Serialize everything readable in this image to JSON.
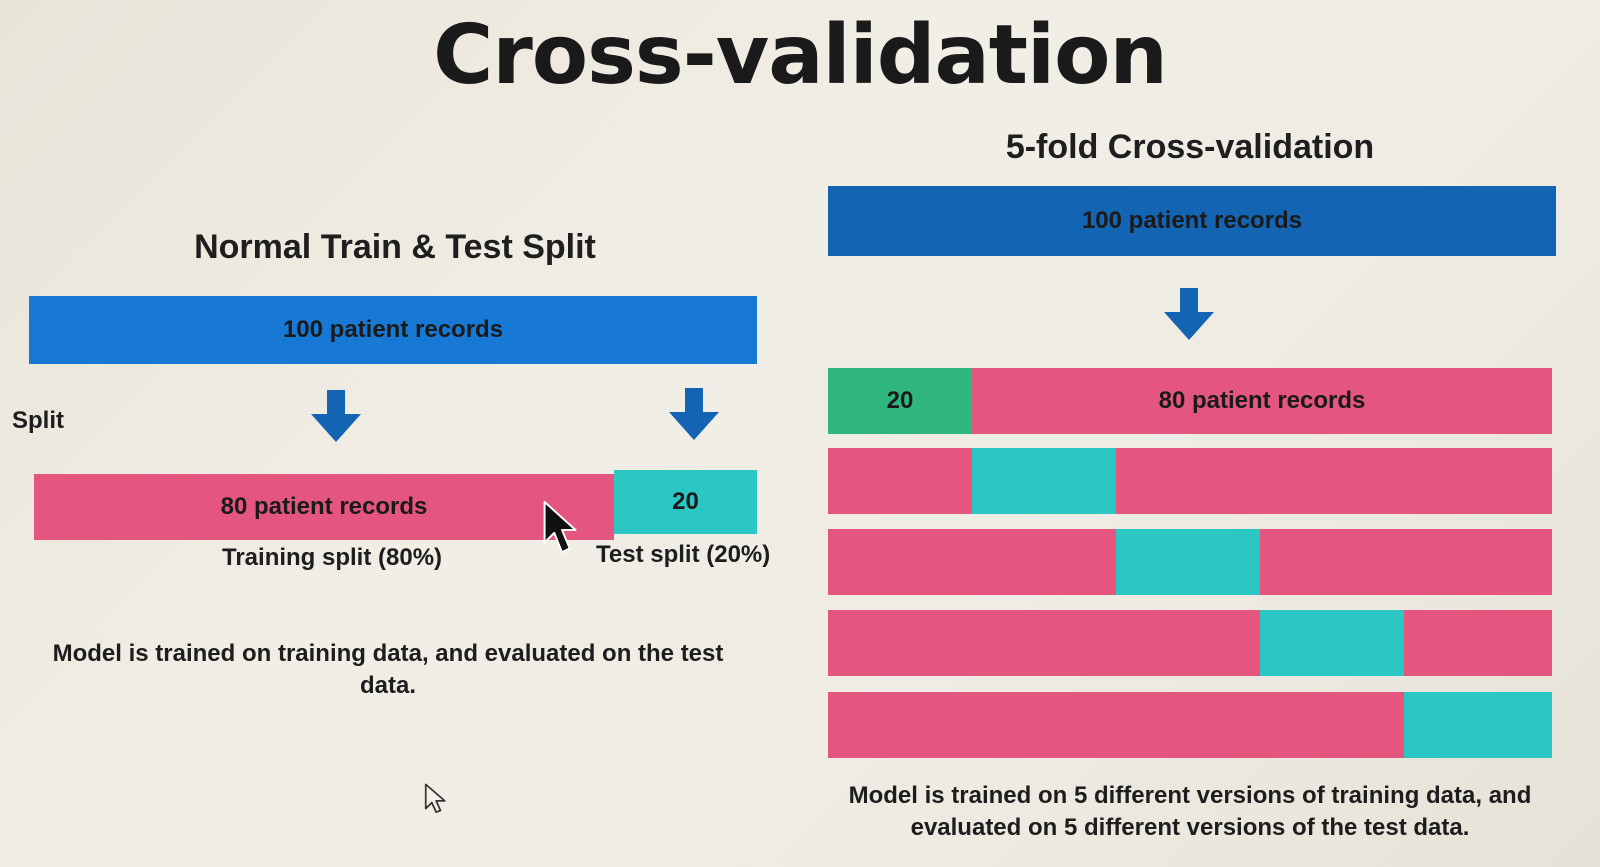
{
  "title": "Cross-validation",
  "left": {
    "heading": "Normal Train & Test Split",
    "top_bar": "100 patient records",
    "split_label": "Split",
    "train_bar": "80 patient records",
    "test_bar": "20",
    "train_caption": "Training split (80%)",
    "test_caption": "Test split (20%)",
    "description": "Model is trained on training data, and evaluated on the test data."
  },
  "right": {
    "heading": "5-fold Cross-validation",
    "top_bar": "100 patient records",
    "fold1_test": "20",
    "fold1_train": "80 patient records",
    "folds": 5,
    "description": "Model is trained on 5 different versions of training data, and evaluated on 5 different versions of the test data."
  },
  "colors": {
    "records": "#1879d4",
    "training": "#e4557f",
    "test": "#2cc6c3",
    "first_fold_test": "#2fb67f"
  }
}
